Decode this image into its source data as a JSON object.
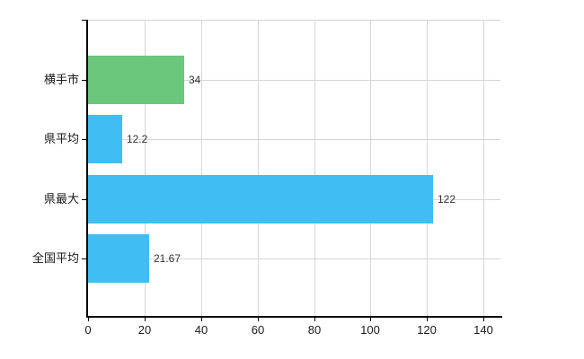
{
  "chart_data": {
    "type": "bar",
    "orientation": "horizontal",
    "title": "",
    "xlabel": "",
    "ylabel": "",
    "categories": [
      "横手市",
      "県平均",
      "県最大",
      "全国平均"
    ],
    "values": [
      34,
      12.2,
      122,
      21.67
    ],
    "value_labels": [
      "34",
      "12.2",
      "122",
      "21.67"
    ],
    "bar_colors": [
      "#6ac77c",
      "#40bdf2",
      "#40bdf2",
      "#40bdf2"
    ],
    "xlim": [
      0,
      146
    ],
    "x_ticks": [
      0,
      20,
      40,
      60,
      80,
      100,
      120,
      140
    ],
    "grid": true,
    "legend": false,
    "colors": {
      "grid": "#d6d6d6",
      "axis": "#000000",
      "text": "#1a1a1a",
      "value_text": "#333333",
      "background": "#ffffff"
    }
  }
}
